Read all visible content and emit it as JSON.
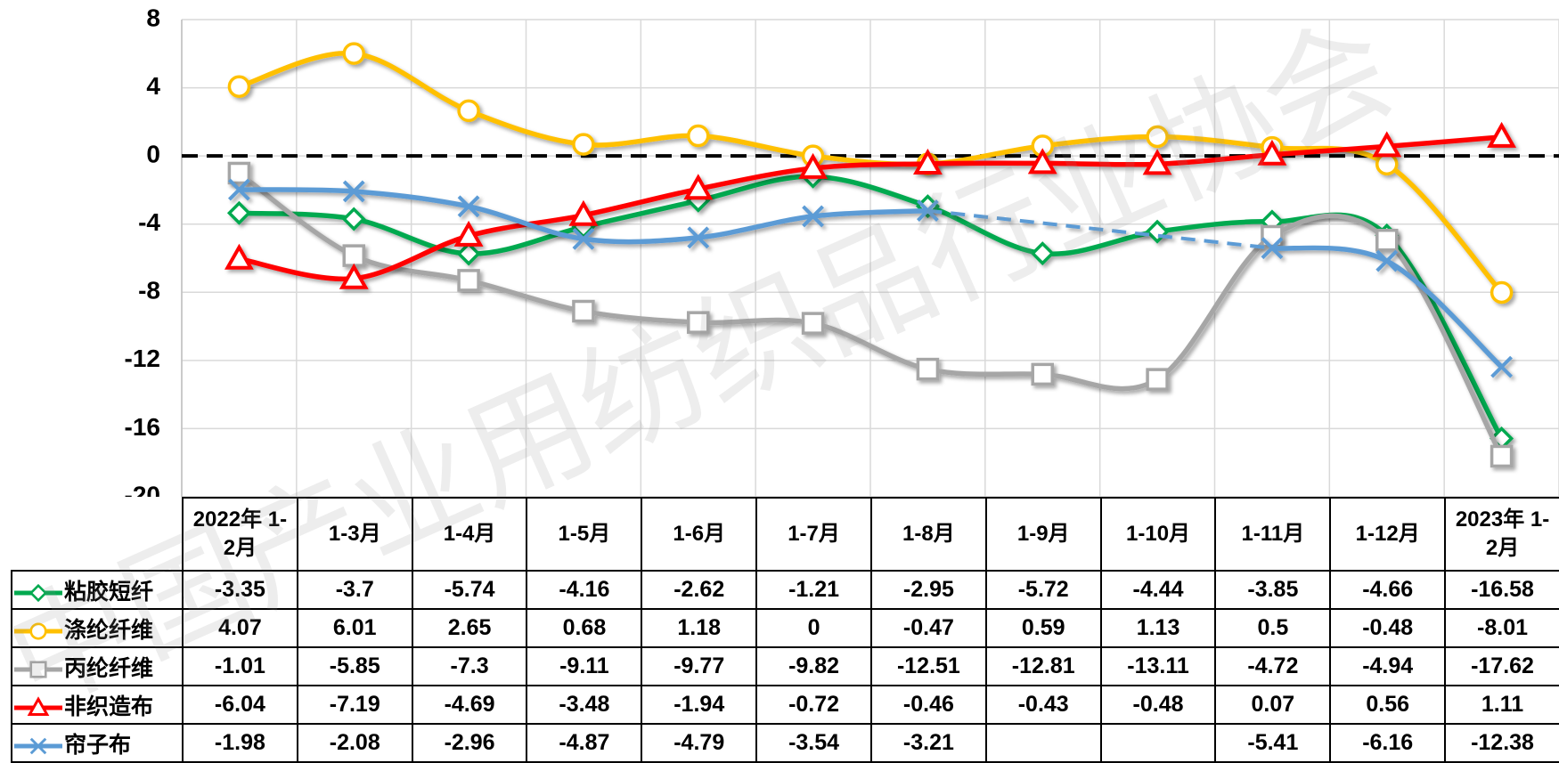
{
  "chart_data": {
    "type": "line",
    "watermark": "中国产业用纺织品行业协会",
    "categories": [
      "2022年 1-2月",
      "1-3月",
      "1-4月",
      "1-5月",
      "1-6月",
      "1-7月",
      "1-8月",
      "1-9月",
      "1-10月",
      "1-11月",
      "1-12月",
      "2023年 1-2月"
    ],
    "series": [
      {
        "name": "粘胶短纤",
        "color": "#00a94f",
        "marker": "diamond",
        "values": [
          -3.35,
          -3.7,
          -5.74,
          -4.16,
          -2.62,
          -1.21,
          -2.95,
          -5.72,
          -4.44,
          -3.85,
          -4.66,
          -16.58
        ]
      },
      {
        "name": "涤纶纤维",
        "color": "#ffc000",
        "marker": "circle",
        "values": [
          4.07,
          6.01,
          2.65,
          0.68,
          1.18,
          0,
          -0.47,
          0.59,
          1.13,
          0.5,
          -0.48,
          -8.01
        ]
      },
      {
        "name": "丙纶纤维",
        "color": "#a6a6a6",
        "marker": "square",
        "values": [
          -1.01,
          -5.85,
          -7.3,
          -9.11,
          -9.77,
          -9.82,
          -12.51,
          -12.81,
          -13.11,
          -4.72,
          -4.94,
          -17.62
        ]
      },
      {
        "name": "非织造布",
        "color": "#ff0000",
        "marker": "triangle",
        "values": [
          -6.04,
          -7.19,
          -4.69,
          -3.48,
          -1.94,
          -0.72,
          -0.46,
          -0.43,
          -0.48,
          0.07,
          0.56,
          1.11
        ]
      },
      {
        "name": "帘子布",
        "color": "#5b9bd5",
        "marker": "x",
        "values": [
          -1.98,
          -2.08,
          -2.96,
          -4.87,
          -4.79,
          -3.54,
          -3.21,
          null,
          null,
          -5.41,
          -6.16,
          -12.38
        ]
      }
    ],
    "ylim": [
      -20,
      8
    ],
    "yticks": [
      8,
      4,
      0,
      -4,
      -8,
      -12,
      -16,
      -20
    ],
    "grid": true,
    "zero_line": true
  }
}
